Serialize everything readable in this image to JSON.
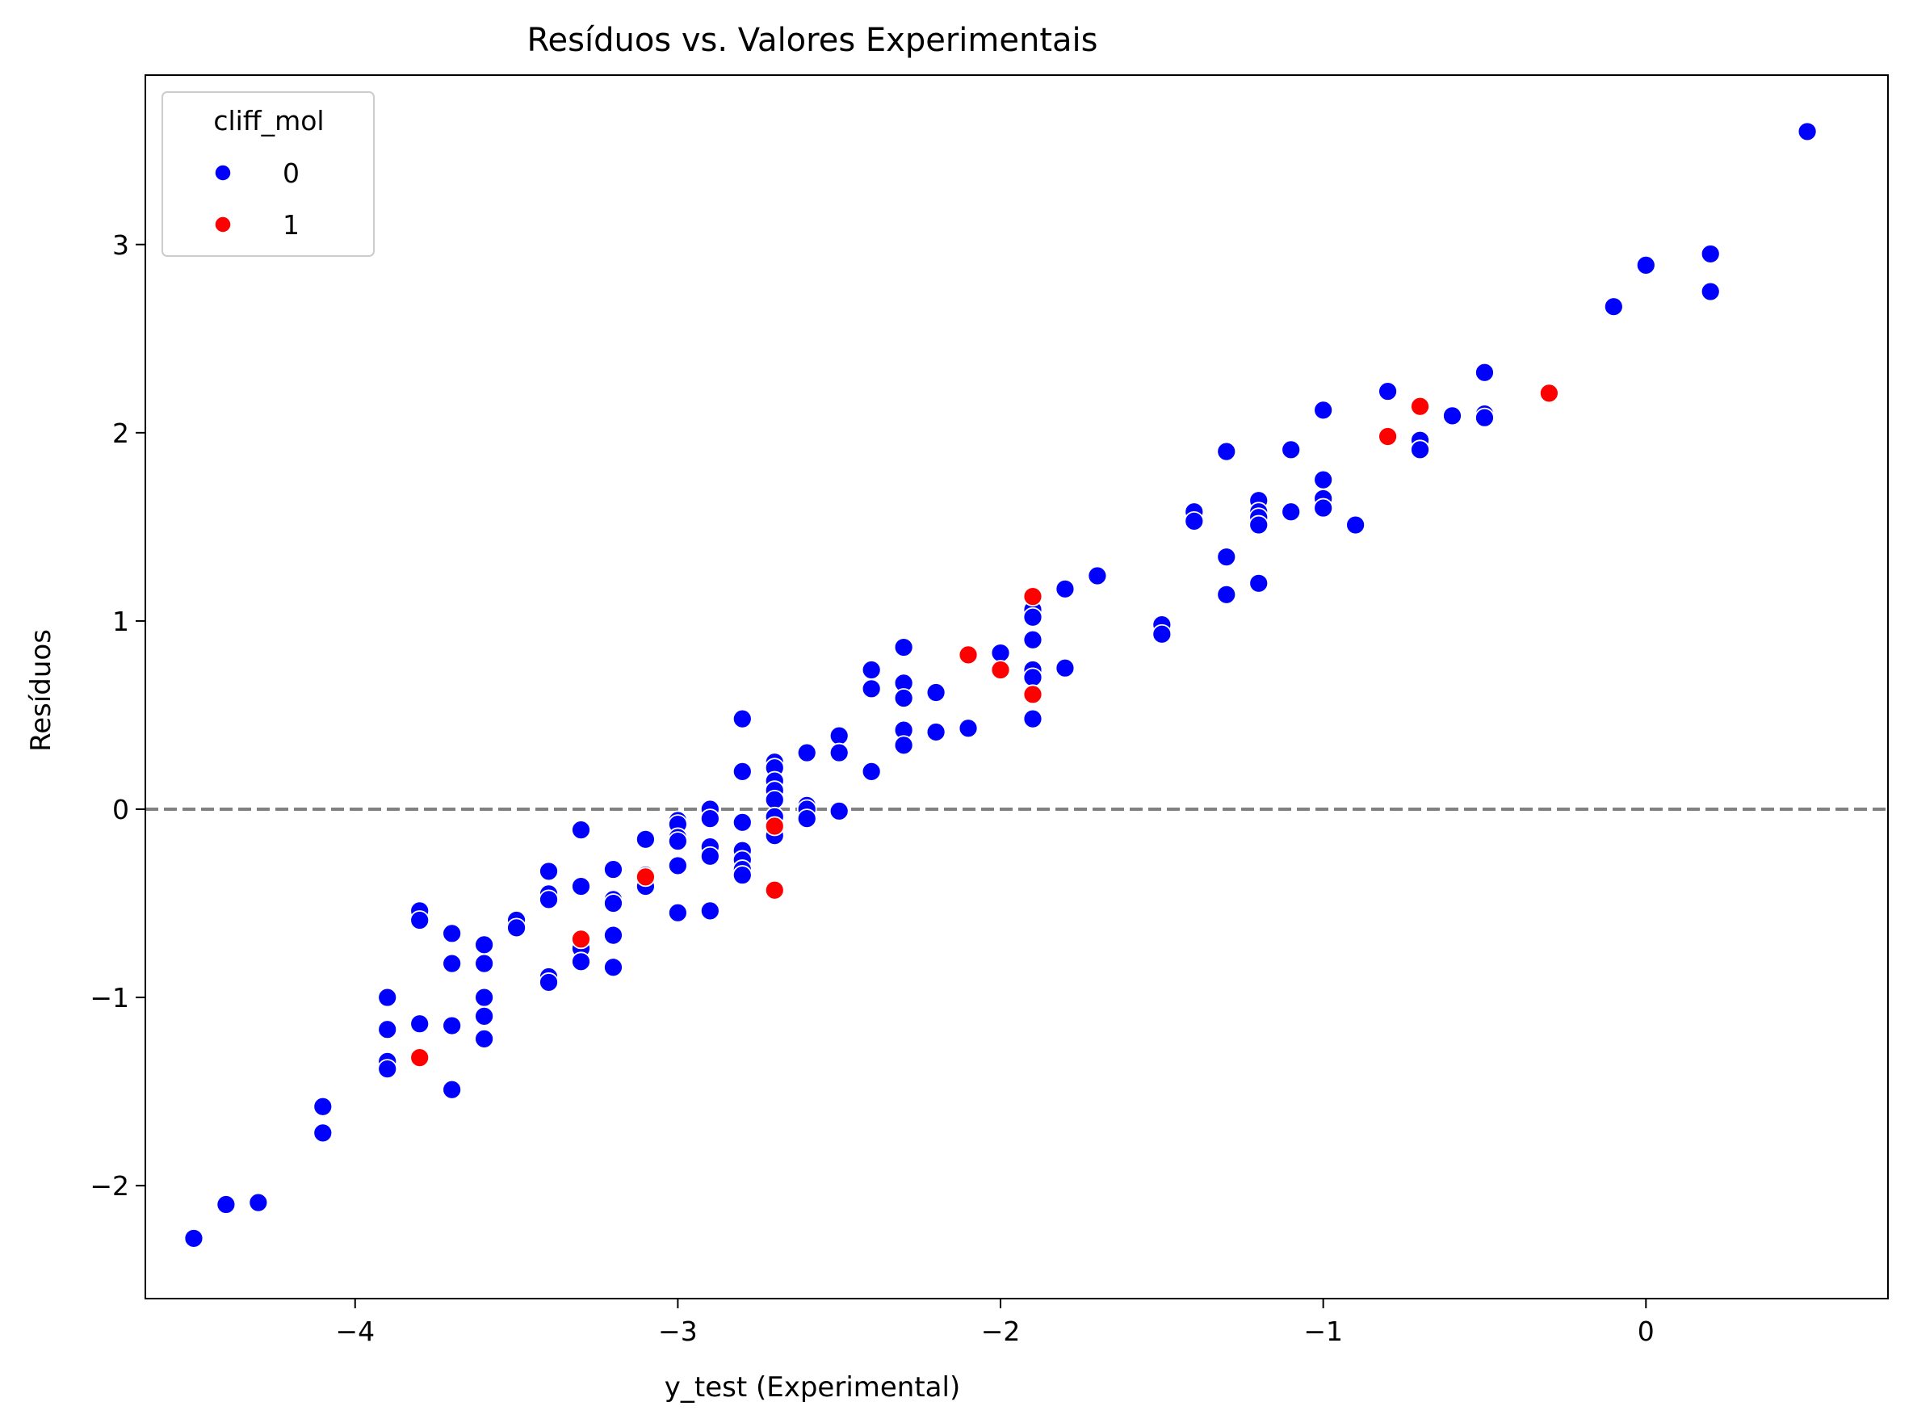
{
  "chart_data": {
    "type": "scatter",
    "title": "Resíduos vs. Valores Experimentais",
    "xlabel": "y_test (Experimental)",
    "ylabel": "Resíduos",
    "xlim": [
      -4.65,
      0.75
    ],
    "ylim": [
      -2.6,
      3.9
    ],
    "xticks": [
      -4,
      -3,
      -2,
      -1,
      0
    ],
    "yticks": [
      -2,
      -1,
      0,
      1,
      2,
      3
    ],
    "xtick_labels": [
      "−4",
      "−3",
      "−2",
      "−1",
      "0"
    ],
    "ytick_labels": [
      "−2",
      "−1",
      "0",
      "1",
      "2",
      "3"
    ],
    "grid": false,
    "reference_line": {
      "y": 0,
      "style": "dashed",
      "color": "#808080"
    },
    "legend": {
      "title": "cliff_mol",
      "placement": "top-left",
      "entries": [
        {
          "label": "0",
          "color": "#0000ff"
        },
        {
          "label": "1",
          "color": "#ff0000"
        }
      ]
    },
    "series": [
      {
        "label": "0",
        "color": "#0000ff",
        "points": [
          [
            -4.5,
            -2.28
          ],
          [
            -4.4,
            -2.1
          ],
          [
            -4.3,
            -2.09
          ],
          [
            -4.1,
            -1.58
          ],
          [
            -4.1,
            -1.72
          ],
          [
            -3.9,
            -1.0
          ],
          [
            -3.9,
            -1.17
          ],
          [
            -3.9,
            -1.34
          ],
          [
            -3.9,
            -1.38
          ],
          [
            -3.8,
            -0.54
          ],
          [
            -3.8,
            -0.59
          ],
          [
            -3.8,
            -1.14
          ],
          [
            -3.7,
            -0.66
          ],
          [
            -3.7,
            -0.82
          ],
          [
            -3.7,
            -1.15
          ],
          [
            -3.7,
            -1.49
          ],
          [
            -3.6,
            -0.72
          ],
          [
            -3.6,
            -0.82
          ],
          [
            -3.6,
            -1.0
          ],
          [
            -3.6,
            -1.1
          ],
          [
            -3.6,
            -1.22
          ],
          [
            -3.5,
            -0.59
          ],
          [
            -3.5,
            -0.63
          ],
          [
            -3.4,
            -0.33
          ],
          [
            -3.4,
            -0.45
          ],
          [
            -3.4,
            -0.48
          ],
          [
            -3.4,
            -0.89
          ],
          [
            -3.4,
            -0.92
          ],
          [
            -3.3,
            -0.11
          ],
          [
            -3.3,
            -0.41
          ],
          [
            -3.3,
            -0.74
          ],
          [
            -3.3,
            -0.81
          ],
          [
            -3.2,
            -0.32
          ],
          [
            -3.2,
            -0.48
          ],
          [
            -3.2,
            -0.5
          ],
          [
            -3.2,
            -0.67
          ],
          [
            -3.2,
            -0.84
          ],
          [
            -3.1,
            -0.16
          ],
          [
            -3.1,
            -0.35
          ],
          [
            -3.1,
            -0.41
          ],
          [
            -3.0,
            -0.06
          ],
          [
            -3.0,
            -0.08
          ],
          [
            -3.0,
            -0.15
          ],
          [
            -3.0,
            -0.17
          ],
          [
            -3.0,
            -0.3
          ],
          [
            -3.0,
            -0.55
          ],
          [
            -2.9,
            0.0
          ],
          [
            -2.9,
            -0.05
          ],
          [
            -2.9,
            -0.2
          ],
          [
            -2.9,
            -0.25
          ],
          [
            -2.9,
            -0.54
          ],
          [
            -2.8,
            0.48
          ],
          [
            -2.8,
            0.2
          ],
          [
            -2.8,
            -0.07
          ],
          [
            -2.8,
            -0.22
          ],
          [
            -2.8,
            -0.27
          ],
          [
            -2.8,
            -0.32
          ],
          [
            -2.8,
            -0.35
          ],
          [
            -2.7,
            0.25
          ],
          [
            -2.7,
            0.22
          ],
          [
            -2.7,
            0.15
          ],
          [
            -2.7,
            0.1
          ],
          [
            -2.7,
            0.05
          ],
          [
            -2.7,
            -0.04
          ],
          [
            -2.7,
            -0.14
          ],
          [
            -2.6,
            0.3
          ],
          [
            -2.6,
            0.02
          ],
          [
            -2.6,
            0.0
          ],
          [
            -2.6,
            -0.05
          ],
          [
            -2.5,
            0.39
          ],
          [
            -2.5,
            0.3
          ],
          [
            -2.5,
            -0.01
          ],
          [
            -2.4,
            0.74
          ],
          [
            -2.4,
            0.64
          ],
          [
            -2.4,
            0.2
          ],
          [
            -2.3,
            0.86
          ],
          [
            -2.3,
            0.67
          ],
          [
            -2.3,
            0.59
          ],
          [
            -2.3,
            0.42
          ],
          [
            -2.3,
            0.34
          ],
          [
            -2.2,
            0.62
          ],
          [
            -2.2,
            0.41
          ],
          [
            -2.1,
            0.43
          ],
          [
            -2.0,
            0.83
          ],
          [
            -1.9,
            1.06
          ],
          [
            -1.9,
            1.02
          ],
          [
            -1.9,
            0.9
          ],
          [
            -1.9,
            0.74
          ],
          [
            -1.9,
            0.7
          ],
          [
            -1.9,
            0.48
          ],
          [
            -1.8,
            1.17
          ],
          [
            -1.8,
            0.75
          ],
          [
            -1.7,
            1.24
          ],
          [
            -1.5,
            0.98
          ],
          [
            -1.5,
            0.93
          ],
          [
            -1.4,
            1.58
          ],
          [
            -1.4,
            1.53
          ],
          [
            -1.3,
            1.9
          ],
          [
            -1.3,
            1.34
          ],
          [
            -1.3,
            1.14
          ],
          [
            -1.2,
            1.64
          ],
          [
            -1.2,
            1.58
          ],
          [
            -1.2,
            1.55
          ],
          [
            -1.2,
            1.51
          ],
          [
            -1.2,
            1.2
          ],
          [
            -1.1,
            1.91
          ],
          [
            -1.1,
            1.58
          ],
          [
            -1.0,
            2.12
          ],
          [
            -1.0,
            1.75
          ],
          [
            -1.0,
            1.65
          ],
          [
            -1.0,
            1.6
          ],
          [
            -0.9,
            1.51
          ],
          [
            -0.8,
            2.22
          ],
          [
            -0.7,
            1.96
          ],
          [
            -0.7,
            1.91
          ],
          [
            -0.6,
            2.09
          ],
          [
            -0.5,
            2.32
          ],
          [
            -0.5,
            2.1
          ],
          [
            -0.5,
            2.08
          ],
          [
            -0.1,
            2.67
          ],
          [
            0.0,
            2.89
          ],
          [
            0.2,
            2.95
          ],
          [
            0.2,
            2.75
          ],
          [
            0.5,
            3.6
          ]
        ]
      },
      {
        "label": "1",
        "color": "#ff0000",
        "points": [
          [
            -3.8,
            -1.32
          ],
          [
            -3.3,
            -0.69
          ],
          [
            -3.1,
            -0.36
          ],
          [
            -2.7,
            -0.09
          ],
          [
            -2.7,
            -0.43
          ],
          [
            -2.1,
            0.82
          ],
          [
            -2.0,
            0.74
          ],
          [
            -1.9,
            1.13
          ],
          [
            -1.9,
            0.61
          ],
          [
            -0.8,
            1.98
          ],
          [
            -0.7,
            2.14
          ],
          [
            -0.3,
            2.21
          ]
        ]
      }
    ]
  }
}
